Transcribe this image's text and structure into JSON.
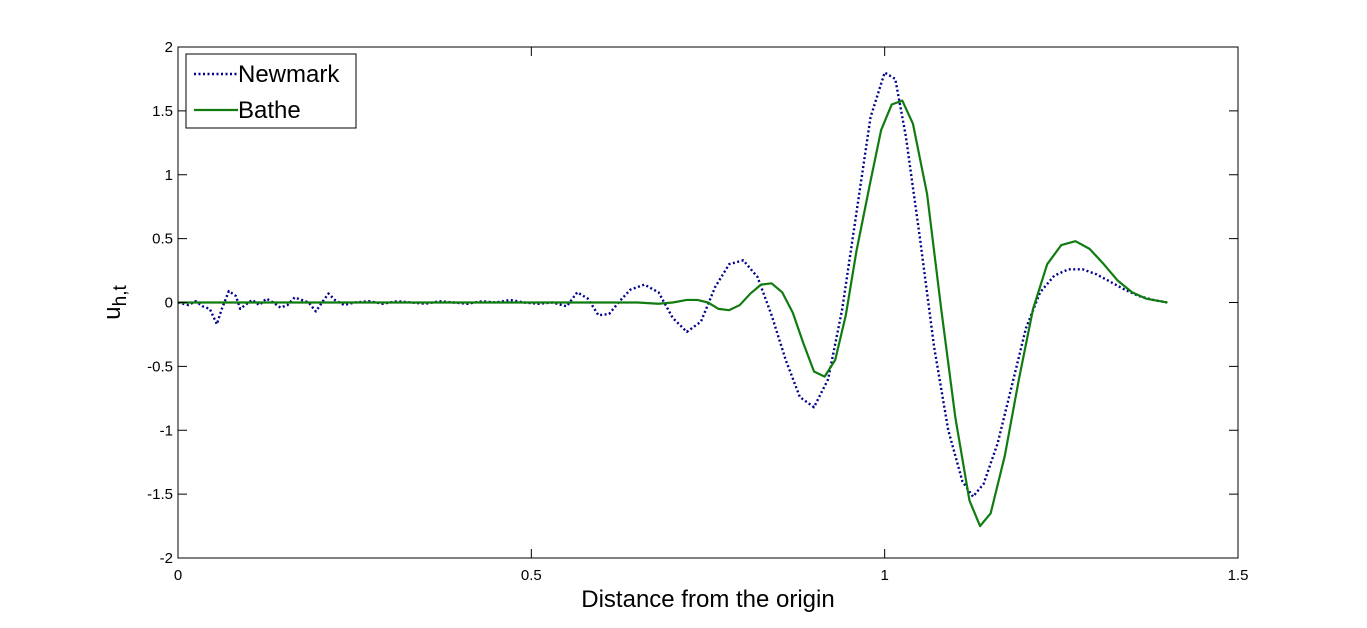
{
  "chart_data": {
    "type": "line",
    "xlabel": "Distance from the origin",
    "ylabel": {
      "main": "u",
      "sub": "h,t"
    },
    "xlim": [
      0,
      1.5
    ],
    "ylim": [
      -2,
      2
    ],
    "xticks": [
      "0",
      "0.5",
      "1",
      "1.5"
    ],
    "yticks": [
      "-2",
      "-1.5",
      "-1",
      "-0.5",
      "0",
      "0.5",
      "1",
      "1.5",
      "2"
    ],
    "grid": false,
    "legend_position": "top-left",
    "series": [
      {
        "name": "Newmark",
        "color": "#00008b",
        "style": "dotted",
        "points": [
          [
            0.0,
            0.0
          ],
          [
            0.015,
            -0.02
          ],
          [
            0.025,
            0.01
          ],
          [
            0.035,
            -0.03
          ],
          [
            0.045,
            -0.05
          ],
          [
            0.055,
            -0.17
          ],
          [
            0.062,
            -0.05
          ],
          [
            0.072,
            0.09
          ],
          [
            0.082,
            0.05
          ],
          [
            0.088,
            -0.05
          ],
          [
            0.095,
            -0.02
          ],
          [
            0.105,
            0.02
          ],
          [
            0.115,
            -0.02
          ],
          [
            0.125,
            0.03
          ],
          [
            0.135,
            0.0
          ],
          [
            0.145,
            -0.04
          ],
          [
            0.155,
            -0.02
          ],
          [
            0.165,
            0.04
          ],
          [
            0.175,
            0.02
          ],
          [
            0.185,
            0.0
          ],
          [
            0.195,
            -0.07
          ],
          [
            0.205,
            0.01
          ],
          [
            0.213,
            0.07
          ],
          [
            0.222,
            0.02
          ],
          [
            0.235,
            -0.02
          ],
          [
            0.25,
            0.0
          ],
          [
            0.27,
            0.01
          ],
          [
            0.29,
            -0.01
          ],
          [
            0.31,
            0.01
          ],
          [
            0.33,
            0.0
          ],
          [
            0.35,
            -0.01
          ],
          [
            0.37,
            0.01
          ],
          [
            0.39,
            0.0
          ],
          [
            0.41,
            -0.01
          ],
          [
            0.43,
            0.01
          ],
          [
            0.45,
            0.0
          ],
          [
            0.47,
            0.02
          ],
          [
            0.49,
            0.0
          ],
          [
            0.51,
            -0.01
          ],
          [
            0.53,
            0.0
          ],
          [
            0.55,
            -0.03
          ],
          [
            0.565,
            0.08
          ],
          [
            0.58,
            0.03
          ],
          [
            0.595,
            -0.1
          ],
          [
            0.61,
            -0.09
          ],
          [
            0.625,
            0.01
          ],
          [
            0.64,
            0.1
          ],
          [
            0.66,
            0.14
          ],
          [
            0.68,
            0.08
          ],
          [
            0.7,
            -0.12
          ],
          [
            0.72,
            -0.23
          ],
          [
            0.74,
            -0.15
          ],
          [
            0.76,
            0.12
          ],
          [
            0.78,
            0.3
          ],
          [
            0.8,
            0.33
          ],
          [
            0.82,
            0.2
          ],
          [
            0.84,
            -0.1
          ],
          [
            0.86,
            -0.45
          ],
          [
            0.88,
            -0.74
          ],
          [
            0.9,
            -0.82
          ],
          [
            0.92,
            -0.6
          ],
          [
            0.94,
            -0.05
          ],
          [
            0.96,
            0.7
          ],
          [
            0.98,
            1.45
          ],
          [
            1.0,
            1.8
          ],
          [
            1.015,
            1.75
          ],
          [
            1.03,
            1.3
          ],
          [
            1.05,
            0.5
          ],
          [
            1.07,
            -0.35
          ],
          [
            1.09,
            -1.0
          ],
          [
            1.11,
            -1.4
          ],
          [
            1.125,
            -1.52
          ],
          [
            1.14,
            -1.42
          ],
          [
            1.16,
            -1.1
          ],
          [
            1.18,
            -0.65
          ],
          [
            1.2,
            -0.2
          ],
          [
            1.22,
            0.08
          ],
          [
            1.24,
            0.21
          ],
          [
            1.26,
            0.26
          ],
          [
            1.28,
            0.26
          ],
          [
            1.3,
            0.22
          ],
          [
            1.32,
            0.16
          ],
          [
            1.34,
            0.1
          ],
          [
            1.36,
            0.05
          ],
          [
            1.38,
            0.02
          ],
          [
            1.4,
            0.0
          ]
        ]
      },
      {
        "name": "Bathe",
        "color": "#107c10",
        "style": "solid",
        "points": [
          [
            0.0,
            0.0
          ],
          [
            0.1,
            0.0
          ],
          [
            0.2,
            0.0
          ],
          [
            0.3,
            0.0
          ],
          [
            0.4,
            0.0
          ],
          [
            0.5,
            0.0
          ],
          [
            0.6,
            0.0
          ],
          [
            0.65,
            0.0
          ],
          [
            0.68,
            -0.01
          ],
          [
            0.7,
            0.0
          ],
          [
            0.72,
            0.02
          ],
          [
            0.735,
            0.02
          ],
          [
            0.75,
            0.0
          ],
          [
            0.765,
            -0.05
          ],
          [
            0.78,
            -0.06
          ],
          [
            0.795,
            -0.02
          ],
          [
            0.81,
            0.07
          ],
          [
            0.825,
            0.14
          ],
          [
            0.84,
            0.15
          ],
          [
            0.855,
            0.08
          ],
          [
            0.87,
            -0.08
          ],
          [
            0.885,
            -0.32
          ],
          [
            0.9,
            -0.54
          ],
          [
            0.915,
            -0.58
          ],
          [
            0.93,
            -0.45
          ],
          [
            0.945,
            -0.1
          ],
          [
            0.96,
            0.4
          ],
          [
            0.98,
            0.95
          ],
          [
            0.995,
            1.35
          ],
          [
            1.01,
            1.55
          ],
          [
            1.025,
            1.58
          ],
          [
            1.04,
            1.4
          ],
          [
            1.06,
            0.85
          ],
          [
            1.08,
            -0.05
          ],
          [
            1.1,
            -0.9
          ],
          [
            1.12,
            -1.55
          ],
          [
            1.135,
            -1.75
          ],
          [
            1.15,
            -1.65
          ],
          [
            1.17,
            -1.2
          ],
          [
            1.19,
            -0.6
          ],
          [
            1.21,
            -0.05
          ],
          [
            1.23,
            0.3
          ],
          [
            1.25,
            0.45
          ],
          [
            1.27,
            0.48
          ],
          [
            1.29,
            0.42
          ],
          [
            1.31,
            0.3
          ],
          [
            1.33,
            0.17
          ],
          [
            1.35,
            0.08
          ],
          [
            1.37,
            0.03
          ],
          [
            1.39,
            0.01
          ],
          [
            1.4,
            0.0
          ]
        ]
      }
    ]
  }
}
